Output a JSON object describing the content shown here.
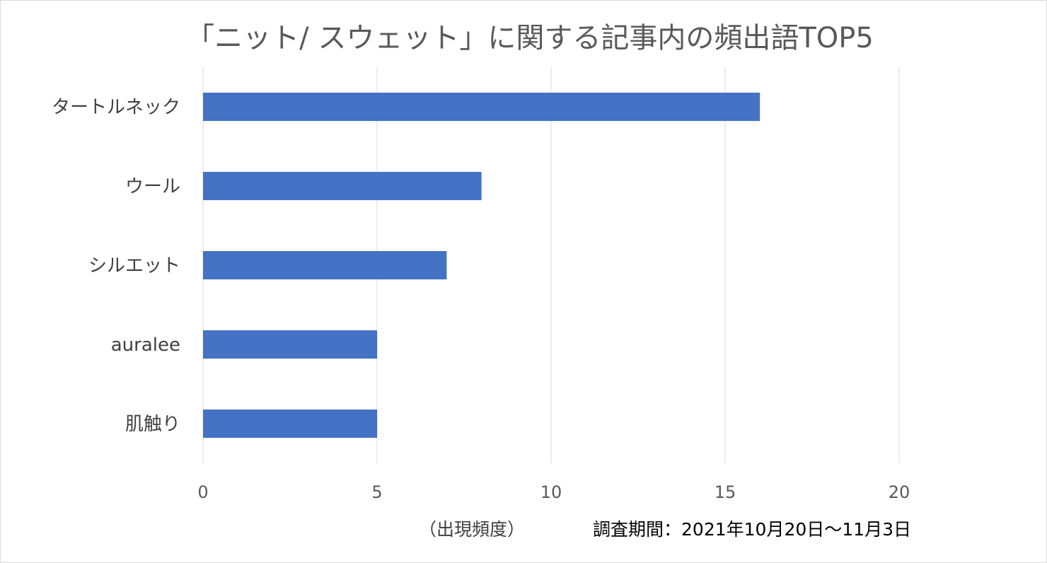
{
  "chart_data": {
    "type": "bar",
    "orientation": "horizontal",
    "title": "「ニット/ スウェット」に関する記事内の頻出語TOP5",
    "categories": [
      "タートルネック",
      "ウール",
      "シルエット",
      "auralee",
      "肌触り"
    ],
    "values": [
      16,
      8,
      7,
      5,
      5
    ],
    "xlabel": "（出現頻度）",
    "ylabel": "",
    "xlim": [
      0,
      20
    ],
    "x_ticks": [
      0,
      5,
      10,
      15,
      20
    ],
    "grid": true,
    "legend": "none",
    "bar_color": "#4472c4",
    "annotation": "調査期間：2021年10月20日〜11月3日"
  }
}
